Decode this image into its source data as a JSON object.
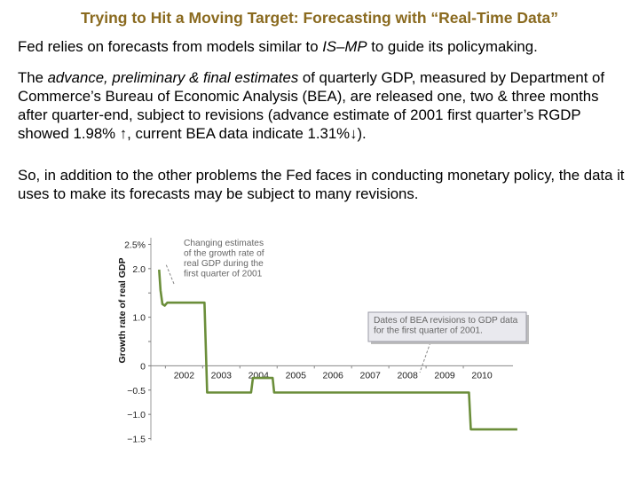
{
  "slide": {
    "title": "Trying to Hit a Moving Target: Forecasting with “Real-Time Data”",
    "p1": [
      {
        "t": "Fed relies on forecasts from models similar to ",
        "i": false
      },
      {
        "t": "IS–MP",
        "i": true
      },
      {
        "t": " to guide its policymaking.",
        "i": false
      }
    ],
    "p2": [
      {
        "t": "The ",
        "i": false
      },
      {
        "t": "advance, preliminary & final estimates",
        "i": true
      },
      {
        "t": " of quarterly GDP, measured by Department of Commerce’s Bureau of Economic Analysis (BEA), are released one, two & three months after quarter-end, subject to revisions (advance estimate of 2001 first quarter’s RGDP showed 1.98% ↑, current BEA data indicate 1.31%↓).",
        "i": false
      }
    ],
    "p3": [
      {
        "t": "So, in addition to the other problems the Fed faces in conducting monetary policy, the data it uses to make its forecasts may be subject to many revisions.",
        "i": false
      }
    ]
  },
  "chart_data": {
    "type": "line",
    "ylabel": "Growth rate of real GDP",
    "x_ticks": [
      "2002",
      "2003",
      "2004",
      "2005",
      "2006",
      "2007",
      "2008",
      "2009",
      "2010"
    ],
    "y_ticks": [
      {
        "v": 2.5,
        "label": "2.5%"
      },
      {
        "v": 2.0,
        "label": "2.0"
      },
      {
        "v": 1.5,
        "label": ""
      },
      {
        "v": 1.0,
        "label": "1.0"
      },
      {
        "v": 0.5,
        "label": ""
      },
      {
        "v": 0.0,
        "label": "0"
      },
      {
        "v": -0.5,
        "label": "−0.5"
      },
      {
        "v": -1.0,
        "label": "−1.0"
      },
      {
        "v": -1.5,
        "label": "−1.5"
      }
    ],
    "ylim": [
      -1.6,
      2.6
    ],
    "xlim": [
      2001.3,
      2011.0
    ],
    "series": [
      {
        "color": "#6b8e3a",
        "points": [
          [
            2001.33,
            1.98
          ],
          [
            2001.37,
            1.55
          ],
          [
            2001.42,
            1.27
          ],
          [
            2001.48,
            1.24
          ],
          [
            2001.55,
            1.3
          ],
          [
            2002.55,
            1.3
          ],
          [
            2002.62,
            -0.55
          ],
          [
            2003.8,
            -0.55
          ],
          [
            2003.85,
            -0.25
          ],
          [
            2004.38,
            -0.25
          ],
          [
            2004.42,
            -0.55
          ],
          [
            2009.65,
            -0.55
          ],
          [
            2009.7,
            -1.31
          ],
          [
            2010.95,
            -1.31
          ]
        ]
      }
    ],
    "annotations": [
      {
        "lines": [
          "Changing estimates",
          "of the growth rate of",
          "real GDP during the",
          "first quarter of 2001"
        ],
        "boxed": false
      },
      {
        "lines": [
          "Dates of BEA revisions to GDP data",
          "for the first quarter of 2001."
        ],
        "boxed": true
      }
    ],
    "line_color": "#6b8e3a"
  }
}
